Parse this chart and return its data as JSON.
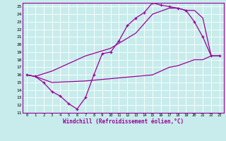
{
  "xlabel": "Windchill (Refroidissement éolien,°C)",
  "bg_color": "#c8ecec",
  "line_color": "#990099",
  "grid_color": "#aadddd",
  "xlim": [
    -0.5,
    23.5
  ],
  "ylim": [
    11,
    25.5
  ],
  "xticks": [
    0,
    1,
    2,
    3,
    4,
    5,
    6,
    7,
    8,
    9,
    10,
    11,
    12,
    13,
    14,
    15,
    16,
    17,
    18,
    19,
    20,
    21,
    22,
    23
  ],
  "yticks": [
    11,
    12,
    13,
    14,
    15,
    16,
    17,
    18,
    19,
    20,
    21,
    22,
    23,
    24,
    25
  ],
  "curve1_x": [
    0,
    1,
    2,
    3,
    4,
    5,
    6,
    7,
    8,
    9,
    10,
    11,
    12,
    13,
    14,
    15,
    16,
    17,
    18,
    19,
    20,
    21,
    22,
    23
  ],
  "curve1_y": [
    16,
    15.8,
    15,
    13.8,
    13.2,
    12.2,
    11.5,
    13,
    16,
    18.8,
    19.0,
    20.5,
    22.5,
    23.5,
    24.2,
    25.5,
    25.2,
    25.0,
    24.8,
    24.5,
    23.0,
    21.0,
    18.5,
    18.5
  ],
  "curve2_x": [
    0,
    1,
    3,
    7,
    10,
    13,
    15,
    17,
    18,
    19,
    20,
    21,
    22,
    23
  ],
  "curve2_y": [
    16,
    15.8,
    16.5,
    18.5,
    19.5,
    21.5,
    24.0,
    24.8,
    24.8,
    24.5,
    24.5,
    23.5,
    18.5,
    18.5
  ],
  "curve3_x": [
    0,
    1,
    3,
    7,
    10,
    13,
    15,
    17,
    18,
    20,
    21,
    22,
    23
  ],
  "curve3_y": [
    16,
    15.8,
    15.0,
    15.2,
    15.5,
    15.8,
    16.0,
    17.0,
    17.2,
    18.0,
    18.0,
    18.5,
    18.5
  ]
}
